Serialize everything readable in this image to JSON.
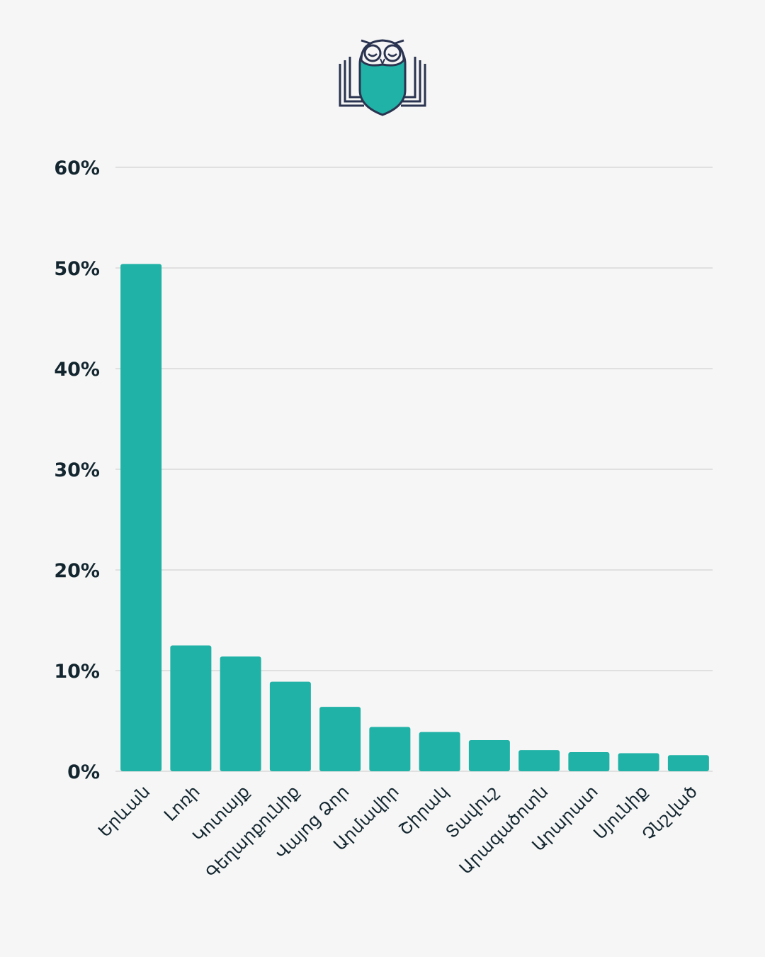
{
  "logo": {
    "icon": "owl-book-shield-icon",
    "colors": {
      "primary": "#20b2a6",
      "outline": "#2a3450"
    }
  },
  "chart_data": {
    "type": "bar",
    "categories": [
      "Երևան",
      "Լոռի",
      "Կոտայք",
      "Գեղարքունիք",
      "Վայոց Ձոր",
      "Արմավիր",
      "Շիրակ",
      "Տավուշ",
      "Արագածոտն",
      "Արարատ",
      "Սյունիք",
      "Չնշված"
    ],
    "values": [
      50.4,
      12.5,
      11.4,
      8.9,
      6.4,
      4.4,
      3.9,
      3.1,
      2.1,
      1.9,
      1.8,
      1.6
    ],
    "ylim": [
      0,
      60
    ],
    "yticks": [
      0,
      10,
      20,
      30,
      40,
      50,
      60
    ],
    "ytick_suffix": "%",
    "grid": true,
    "bar_color": "#20b2a6",
    "text_color": "#13262f"
  }
}
